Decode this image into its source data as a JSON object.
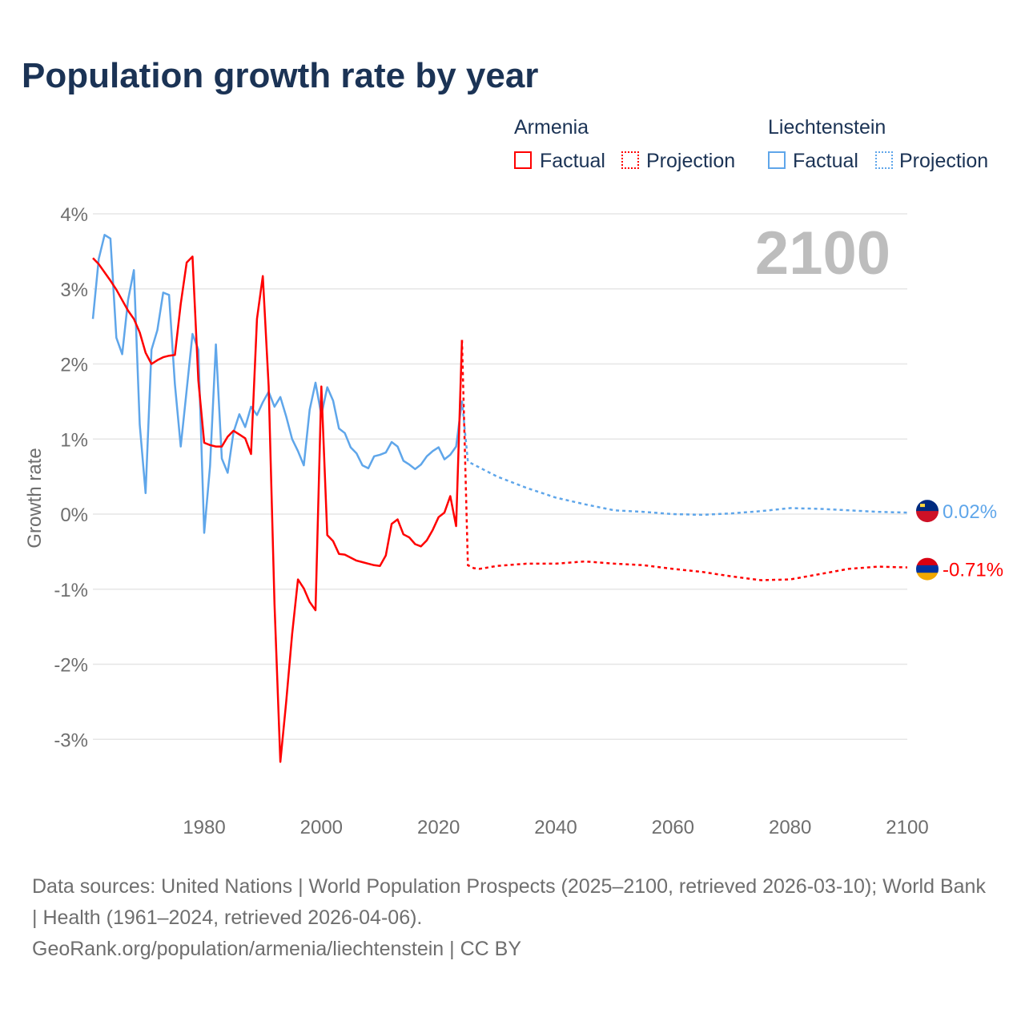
{
  "chart_data": {
    "type": "line",
    "title": "Population growth rate by year",
    "ylabel": "Growth rate",
    "xlabel": "",
    "ylim": [
      -4,
      4
    ],
    "xlim": [
      1961,
      2100
    ],
    "yticks": [
      "4%",
      "3%",
      "2%",
      "1%",
      "0%",
      "-1%",
      "-2%",
      "-3%"
    ],
    "ytick_values": [
      4,
      3,
      2,
      1,
      0,
      -1,
      -2,
      -3
    ],
    "xticks": [
      "1980",
      "2000",
      "2020",
      "2040",
      "2060",
      "2080",
      "2100"
    ],
    "xtick_values": [
      1980,
      2000,
      2020,
      2040,
      2060,
      2080,
      2100
    ],
    "year_label": "2100",
    "legend": {
      "groups": [
        {
          "name": "Armenia",
          "factual": "Factual",
          "projection": "Projection"
        },
        {
          "name": "Liechtenstein",
          "factual": "Factual",
          "projection": "Projection"
        }
      ]
    },
    "series": [
      {
        "name": "Armenia",
        "color": "#ff0000",
        "end_label": "-0.71%",
        "factual": {
          "start": 1961,
          "values": [
            3.41,
            3.33,
            3.22,
            3.11,
            2.99,
            2.85,
            2.71,
            2.6,
            2.42,
            2.15,
            2.0,
            2.05,
            2.09,
            2.11,
            2.12,
            2.8,
            3.35,
            3.43,
            1.78,
            0.95,
            0.92,
            0.9,
            0.9,
            1.03,
            1.11,
            1.06,
            1.01,
            0.8,
            2.6,
            3.17,
            1.7,
            -1.2,
            -3.3,
            -2.5,
            -1.6,
            -0.87,
            -0.99,
            -1.17,
            -1.28,
            1.7,
            -0.28,
            -0.36,
            -0.53,
            -0.54,
            -0.58,
            -0.62,
            -0.64,
            -0.66,
            -0.68,
            -0.69,
            -0.55,
            -0.13,
            -0.07,
            -0.27,
            -0.31,
            -0.4,
            -0.43,
            -0.35,
            -0.21,
            -0.04,
            0.02,
            0.24,
            -0.16,
            2.32
          ]
        },
        "projection": {
          "x": [
            2024,
            2025,
            2026,
            2027,
            2030,
            2035,
            2040,
            2045,
            2050,
            2055,
            2060,
            2065,
            2070,
            2075,
            2080,
            2085,
            2090,
            2095,
            2100
          ],
          "values": [
            2.32,
            -0.68,
            -0.72,
            -0.73,
            -0.69,
            -0.66,
            -0.66,
            -0.63,
            -0.66,
            -0.68,
            -0.73,
            -0.77,
            -0.83,
            -0.88,
            -0.87,
            -0.8,
            -0.73,
            -0.7,
            -0.71
          ]
        }
      },
      {
        "name": "Liechtenstein",
        "color": "#5fa6ea",
        "end_label": "0.02%",
        "factual": {
          "start": 1961,
          "values": [
            2.6,
            3.4,
            3.72,
            3.67,
            2.35,
            2.13,
            2.85,
            3.25,
            1.19,
            0.28,
            2.19,
            2.45,
            2.95,
            2.92,
            1.73,
            0.9,
            1.65,
            2.4,
            2.19,
            -0.25,
            0.64,
            2.26,
            0.74,
            0.55,
            1.09,
            1.33,
            1.16,
            1.43,
            1.32,
            1.49,
            1.63,
            1.43,
            1.56,
            1.3,
            1.0,
            0.84,
            0.65,
            1.39,
            1.75,
            1.32,
            1.69,
            1.51,
            1.14,
            1.08,
            0.89,
            0.81,
            0.65,
            0.61,
            0.77,
            0.79,
            0.82,
            0.96,
            0.9,
            0.71,
            0.66,
            0.6,
            0.66,
            0.77,
            0.84,
            0.89,
            0.73,
            0.79,
            0.9,
            1.51
          ]
        },
        "projection": {
          "x": [
            2024,
            2025,
            2030,
            2035,
            2040,
            2045,
            2050,
            2055,
            2060,
            2065,
            2070,
            2075,
            2080,
            2085,
            2090,
            2095,
            2100
          ],
          "values": [
            1.51,
            0.7,
            0.5,
            0.35,
            0.22,
            0.13,
            0.05,
            0.03,
            0.0,
            -0.01,
            0.01,
            0.04,
            0.08,
            0.07,
            0.05,
            0.03,
            0.02
          ]
        }
      }
    ]
  },
  "footer": {
    "line1": "Data sources: United Nations | World Population Prospects (2025–2100, retrieved 2026-03-10); World Bank | Health (1961–2024, retrieved 2026-04-06).",
    "line2": "GeoRank.org/population/armenia/liechtenstein | CC BY"
  }
}
